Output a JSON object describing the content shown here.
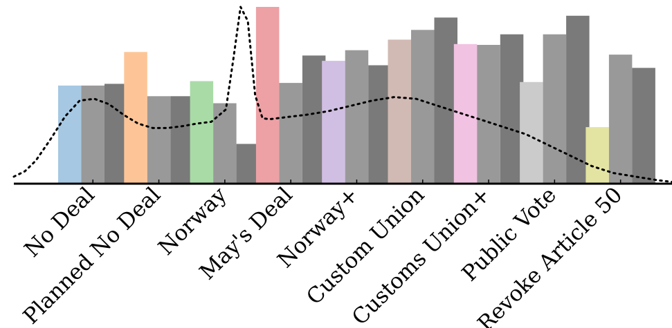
{
  "chart_data": {
    "type": "bar",
    "categories": [
      "No Deal",
      "Planned No Deal",
      "Norway",
      "May's Deal",
      "Norway+",
      "Custom Union",
      "Customs Union+",
      "Public Vote",
      "Revoke Article 50"
    ],
    "series": [
      {
        "values": [
          0.555,
          0.745,
          0.58,
          1.0,
          0.695,
          0.815,
          0.79,
          0.575,
          0.32
        ],
        "colors": [
          "#a6c8e2",
          "#fdc597",
          "#a9dba6",
          "#eda1a5",
          "#d1bfe3",
          "#d1b9b4",
          "#f1c2e2",
          "#cbcbcb",
          "#e3e4a2"
        ]
      },
      {
        "values": [
          0.555,
          0.495,
          0.455,
          0.57,
          0.755,
          0.87,
          0.785,
          0.845,
          0.73
        ],
        "color": "#999999"
      },
      {
        "values": [
          0.565,
          0.495,
          0.225,
          0.725,
          0.67,
          0.94,
          0.845,
          0.95,
          0.655
        ],
        "color": "#7a7a7a"
      }
    ],
    "density_curve": {
      "style": "dotted",
      "x": [
        0,
        0.15,
        0.3,
        0.5,
        0.7,
        0.9,
        1.1,
        1.3,
        1.5,
        1.7,
        1.9,
        2.1,
        2.3,
        2.5,
        2.7,
        2.9,
        3.0,
        3.1,
        3.2,
        3.3,
        3.4,
        3.5,
        3.6,
        3.8,
        4.0,
        4.3,
        4.6,
        4.9,
        5.2,
        5.5,
        5.8,
        6.1,
        6.4,
        6.7,
        7.0,
        7.3,
        7.6,
        7.9,
        8.2,
        8.5,
        8.8,
        9.0
      ],
      "y": [
        0.04,
        0.07,
        0.13,
        0.25,
        0.38,
        0.47,
        0.48,
        0.45,
        0.39,
        0.34,
        0.315,
        0.315,
        0.325,
        0.34,
        0.35,
        0.42,
        0.7,
        1.0,
        0.92,
        0.5,
        0.37,
        0.365,
        0.37,
        0.38,
        0.39,
        0.41,
        0.44,
        0.47,
        0.49,
        0.48,
        0.44,
        0.4,
        0.36,
        0.32,
        0.28,
        0.22,
        0.16,
        0.1,
        0.06,
        0.04,
        0.02,
        0.01
      ]
    },
    "grid": false,
    "legend": "none",
    "ylim": [
      0,
      1
    ],
    "xlabel": "",
    "ylabel": "",
    "title": ""
  }
}
